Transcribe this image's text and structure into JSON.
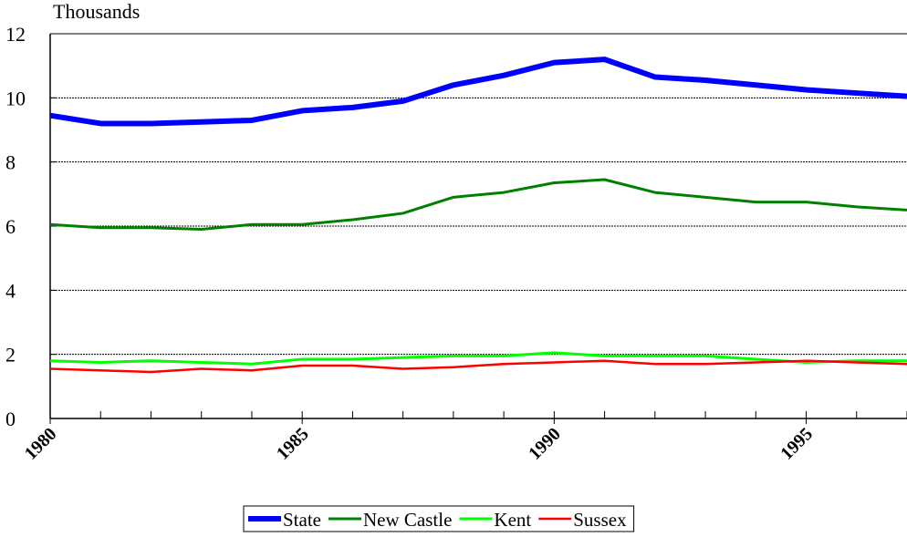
{
  "chart_data": {
    "type": "line",
    "y_label": "Thousands",
    "x": [
      1980,
      1981,
      1982,
      1983,
      1984,
      1985,
      1986,
      1987,
      1988,
      1989,
      1990,
      1991,
      1992,
      1993,
      1994,
      1995,
      1996,
      1997
    ],
    "xlim": [
      1980,
      1997
    ],
    "xticks": [
      1980,
      1985,
      1990,
      1995
    ],
    "ylim": [
      0,
      12
    ],
    "yticks": [
      0,
      2,
      4,
      6,
      8,
      10,
      12
    ],
    "grid": true,
    "legend": "bottom",
    "series": [
      {
        "name": "State",
        "color": "#0000ff",
        "values": [
          9.45,
          9.2,
          9.2,
          9.25,
          9.3,
          9.6,
          9.7,
          9.9,
          10.4,
          10.7,
          11.1,
          11.2,
          10.65,
          10.55,
          10.4,
          10.25,
          10.15,
          10.05
        ]
      },
      {
        "name": "New Castle",
        "color": "#008000",
        "values": [
          6.05,
          5.95,
          5.95,
          5.9,
          6.05,
          6.05,
          6.2,
          6.4,
          6.9,
          7.05,
          7.35,
          7.45,
          7.05,
          6.9,
          6.75,
          6.75,
          6.6,
          6.5
        ]
      },
      {
        "name": "Kent",
        "color": "#00ff00",
        "values": [
          1.8,
          1.75,
          1.8,
          1.75,
          1.7,
          1.85,
          1.85,
          1.9,
          1.95,
          1.95,
          2.05,
          1.95,
          1.95,
          1.95,
          1.85,
          1.75,
          1.8,
          1.8
        ]
      },
      {
        "name": "Sussex",
        "color": "#ff0000",
        "values": [
          1.55,
          1.5,
          1.45,
          1.55,
          1.5,
          1.65,
          1.65,
          1.55,
          1.6,
          1.7,
          1.75,
          1.8,
          1.7,
          1.7,
          1.75,
          1.8,
          1.75,
          1.7
        ]
      }
    ]
  }
}
